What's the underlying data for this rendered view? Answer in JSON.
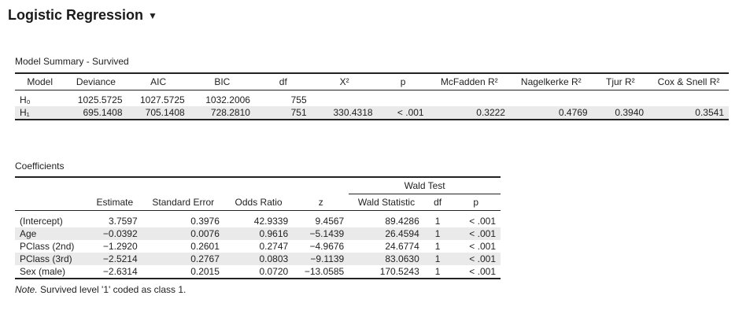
{
  "header": {
    "title": "Logistic Regression",
    "caret": "▼"
  },
  "model_summary": {
    "caption": "Model Summary - Survived",
    "columns": [
      "Model",
      "Deviance",
      "AIC",
      "BIC",
      "df",
      "X²",
      "p",
      "McFadden R²",
      "Nagelkerke R²",
      "Tjur R²",
      "Cox & Snell R²"
    ],
    "rows": [
      [
        "H₀",
        "1025.5725",
        "1027.5725",
        "1032.2006",
        "755",
        "",
        "",
        "",
        "",
        "",
        ""
      ],
      [
        "H₁",
        "695.1408",
        "705.1408",
        "728.2810",
        "751",
        "330.4318",
        "< .001",
        "0.3222",
        "0.4769",
        "0.3940",
        "0.3541"
      ]
    ]
  },
  "coefficients": {
    "caption": "Coefficients",
    "group_header": "Wald Test",
    "columns": [
      "",
      "Estimate",
      "Standard Error",
      "Odds Ratio",
      "z",
      "Wald Statistic",
      "df",
      "p"
    ],
    "rows": [
      [
        "(Intercept)",
        "3.7597",
        "0.3976",
        "42.9339",
        "9.4567",
        "89.4286",
        "1",
        "< .001"
      ],
      [
        "Age",
        "−0.0392",
        "0.0076",
        "0.9616",
        "−5.1439",
        "26.4594",
        "1",
        "< .001"
      ],
      [
        "PClass (2nd)",
        "−1.2920",
        "0.2601",
        "0.2747",
        "−4.9676",
        "24.6774",
        "1",
        "< .001"
      ],
      [
        "PClass (3rd)",
        "−2.5214",
        "0.2767",
        "0.0803",
        "−9.1139",
        "83.0630",
        "1",
        "< .001"
      ],
      [
        "Sex (male)",
        "−2.6314",
        "0.2015",
        "0.0720",
        "−13.0585",
        "170.5243",
        "1",
        "< .001"
      ]
    ],
    "note_label": "Note.",
    "note_text": " Survived level '1' coded as class 1."
  }
}
